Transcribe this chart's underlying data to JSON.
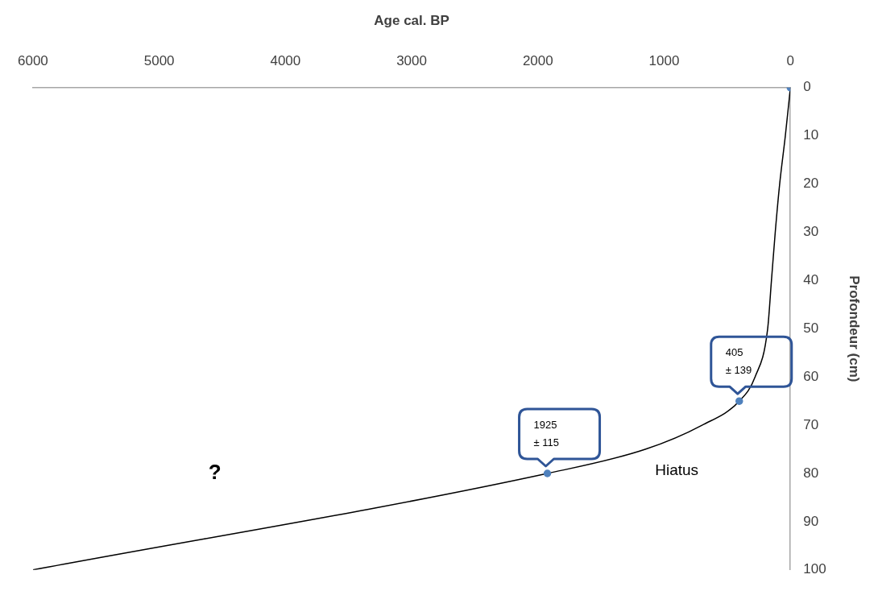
{
  "chart_data": {
    "type": "line",
    "xlabel": "Age cal. BP",
    "ylabel": "Profondeur (cm)",
    "xlim": [
      6000,
      0
    ],
    "xticks": [
      6000,
      5000,
      4000,
      3000,
      2000,
      1000,
      0
    ],
    "ylim": [
      100,
      0
    ],
    "yticks": [
      0,
      10,
      20,
      30,
      40,
      50,
      60,
      70,
      80,
      90,
      100
    ],
    "grid": false,
    "legend": false,
    "series": [
      {
        "type": "line",
        "color": "#000000",
        "marker": "none",
        "x": [
          0,
          40,
          85,
          120,
          150,
          180,
          280,
          405,
          700,
          1150,
          1925,
          6000
        ],
        "values": [
          0,
          10,
          20,
          30,
          40,
          50,
          60,
          65,
          70,
          75,
          80,
          100
        ]
      },
      {
        "type": "scatter",
        "color": "#4f81bd",
        "marker": "circle",
        "x": [
          0,
          405,
          1925
        ],
        "values": [
          0,
          65,
          80
        ]
      }
    ],
    "annotations": [
      {
        "text": "405\n± 139",
        "x": 405,
        "y": 65
      },
      {
        "text": "1925\n± 115",
        "x": 1925,
        "y": 80
      },
      "Hiatus",
      "?"
    ]
  }
}
